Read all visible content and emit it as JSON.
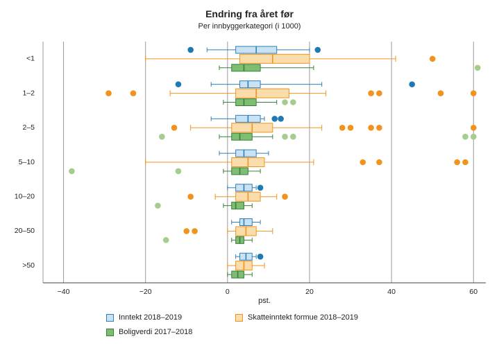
{
  "chart_data": {
    "type": "boxplot",
    "orientation": "horizontal",
    "title": "Endring fra året før",
    "subtitle": "Per innbyggerkategori (i 1000)",
    "xlabel": "pst.",
    "ylabel": "",
    "xlim": [
      -45,
      63
    ],
    "x_ticks": [
      -40,
      -20,
      0,
      20,
      40,
      60
    ],
    "x_tick_labels": [
      "−40",
      "−20",
      "0",
      "20",
      "40",
      "60"
    ],
    "grid": "vertical",
    "legend_position": "bottom",
    "categories": [
      "<1",
      "1–2",
      "2–5",
      "5–10",
      "10–20",
      "20–50",
      ">50"
    ],
    "box_format": [
      "whisker_low",
      "q1",
      "median",
      "q3",
      "whisker_high"
    ],
    "series": [
      {
        "name": "Inntekt 2018–2019",
        "color_fill": "#c9e3f4",
        "color_stroke": "#2e7fb8",
        "color_dot": "#1f7ab4",
        "boxes": [
          [
            -5,
            2,
            7,
            12,
            20
          ],
          [
            -4,
            3,
            5,
            8,
            23
          ],
          [
            -4,
            2,
            5,
            8,
            9
          ],
          [
            -2,
            2,
            4,
            7,
            10
          ],
          [
            0,
            2,
            4,
            6,
            7
          ],
          [
            1,
            3,
            4,
            6,
            8
          ],
          [
            2,
            3,
            4.5,
            6,
            7
          ]
        ],
        "outliers": [
          [
            -9,
            22
          ],
          [
            -12,
            45
          ],
          [
            11.5,
            13
          ],
          [],
          [
            8
          ],
          [],
          [
            8
          ]
        ]
      },
      {
        "name": "Skatteinntekt formue 2018–2019",
        "color_fill": "#fbdcab",
        "color_stroke": "#f0941e",
        "color_dot": "#f0941e",
        "boxes": [
          [
            -20,
            3,
            11,
            20,
            41
          ],
          [
            -14,
            2,
            7,
            15,
            24
          ],
          [
            -9,
            1,
            6,
            11,
            23
          ],
          [
            -20,
            1,
            5,
            9,
            21
          ],
          [
            -3,
            2,
            5,
            8,
            12
          ],
          [
            0,
            2,
            4.5,
            7,
            11
          ],
          [
            0,
            2,
            4,
            6,
            9
          ]
        ],
        "outliers": [
          [
            50
          ],
          [
            -29,
            -23,
            35,
            37,
            52,
            60
          ],
          [
            -13,
            28,
            30,
            35,
            37,
            60
          ],
          [
            33,
            37,
            56,
            58
          ],
          [
            -9,
            14
          ],
          [
            -10,
            -8
          ],
          []
        ]
      },
      {
        "name": "Boligverdi 2017–2018",
        "color_fill": "#7fbd72",
        "color_stroke": "#37803b",
        "color_dot": "#a5cd8d",
        "boxes": [
          [
            -2,
            1,
            4,
            8,
            21
          ],
          [
            -1,
            2,
            4,
            7,
            12
          ],
          [
            -2,
            1,
            3,
            6,
            11
          ],
          [
            -1,
            1,
            3,
            5,
            8
          ],
          [
            -1,
            1,
            2,
            4,
            6
          ],
          [
            1,
            2,
            3,
            4,
            6
          ],
          [
            0,
            1,
            2.5,
            4,
            6
          ]
        ],
        "outliers": [
          [
            61
          ],
          [
            14,
            16
          ],
          [
            -16,
            14,
            16,
            58,
            60
          ],
          [
            -38,
            -12
          ],
          [
            -17
          ],
          [
            -15
          ],
          []
        ]
      }
    ]
  }
}
